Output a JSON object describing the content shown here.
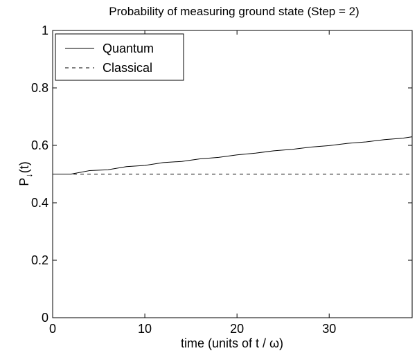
{
  "chart_data": {
    "type": "line",
    "title": "Probability of measuring ground state (Step = 2)",
    "xlabel": "time (units of t / ω)",
    "ylabel_main": "P",
    "ylabel_sub": "↓",
    "ylabel_tail": "(t)",
    "xlim": [
      0,
      39
    ],
    "ylim": [
      0,
      1
    ],
    "xticks": [
      0,
      10,
      20,
      30
    ],
    "yticks": [
      0,
      0.2,
      0.4,
      0.6,
      0.8,
      1
    ],
    "ytick_labels": [
      "0",
      "0.2",
      "0.4",
      "0.6",
      "0.8",
      "1"
    ],
    "grid": false,
    "legend_position": "top-left",
    "series": [
      {
        "name": "Quantum",
        "style": "solid",
        "color": "#000000",
        "x": [
          0,
          2,
          4,
          6,
          8,
          10,
          12,
          14,
          16,
          18,
          20,
          22,
          24,
          26,
          28,
          30,
          32,
          34,
          36,
          38,
          39
        ],
        "y": [
          0.5,
          0.5,
          0.512,
          0.515,
          0.526,
          0.53,
          0.54,
          0.544,
          0.553,
          0.558,
          0.567,
          0.573,
          0.581,
          0.586,
          0.594,
          0.599,
          0.607,
          0.612,
          0.62,
          0.625,
          0.63
        ]
      },
      {
        "name": "Classical",
        "style": "dashed",
        "color": "#000000",
        "x": [
          0,
          39
        ],
        "y": [
          0.5,
          0.5
        ]
      }
    ]
  }
}
